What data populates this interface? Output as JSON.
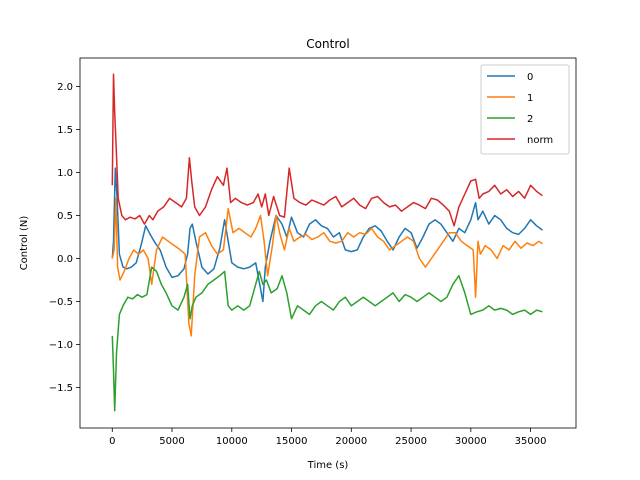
{
  "chart_data": {
    "type": "line",
    "title": "Control",
    "xlabel": "Time (s)",
    "ylabel": "Control (N)",
    "xlim": [
      -2700,
      38800
    ],
    "ylim": [
      -1.97,
      2.33
    ],
    "xticks": [
      0,
      5000,
      10000,
      15000,
      20000,
      25000,
      30000,
      35000
    ],
    "xtick_labels": [
      "0",
      "5000",
      "10000",
      "15000",
      "20000",
      "25000",
      "30000",
      "35000"
    ],
    "yticks": [
      -1.5,
      -1.0,
      -0.5,
      0.0,
      0.5,
      1.0,
      1.5,
      2.0
    ],
    "ytick_labels": [
      "−1.5",
      "−1.0",
      "−0.5",
      "0.0",
      "0.5",
      "1.0",
      "1.5",
      "2.0"
    ],
    "grid": false,
    "legend_position": "top-right",
    "series": [
      {
        "name": "0",
        "color": "#1f77b4",
        "x": [
          0,
          100,
          250,
          400,
          600,
          900,
          1200,
          1600,
          2000,
          2400,
          2800,
          3100,
          3500,
          4000,
          4500,
          5000,
          5500,
          6000,
          6300,
          6500,
          6700,
          7000,
          7500,
          8000,
          8500,
          9000,
          9400,
          9700,
          10000,
          10500,
          11000,
          11500,
          12000,
          12400,
          12600,
          12800,
          13200,
          13700,
          14200,
          14600,
          15000,
          15500,
          16000,
          16500,
          17000,
          17500,
          18000,
          18500,
          19000,
          19500,
          20000,
          20500,
          21000,
          21500,
          22000,
          22500,
          23000,
          23500,
          24000,
          24500,
          25000,
          25500,
          26000,
          26500,
          27000,
          27500,
          28000,
          28500,
          29000,
          29500,
          30000,
          30400,
          30600,
          30800,
          31000,
          31500,
          32000,
          32500,
          33000,
          33500,
          34000,
          34500,
          35000,
          35500,
          36000
        ],
        "values": [
          0.0,
          0.2,
          1.05,
          0.7,
          0.05,
          -0.1,
          -0.12,
          -0.1,
          -0.05,
          0.15,
          0.38,
          0.3,
          0.2,
          0.1,
          -0.1,
          -0.22,
          -0.2,
          -0.12,
          0.05,
          0.35,
          0.4,
          0.2,
          -0.1,
          -0.18,
          -0.12,
          0.12,
          0.45,
          0.2,
          -0.05,
          -0.1,
          -0.12,
          -0.1,
          -0.05,
          -0.35,
          -0.5,
          -0.1,
          0.2,
          0.5,
          0.4,
          0.25,
          0.48,
          0.3,
          0.25,
          0.4,
          0.45,
          0.38,
          0.35,
          0.25,
          0.3,
          0.1,
          0.08,
          0.1,
          0.25,
          0.35,
          0.38,
          0.32,
          0.2,
          0.1,
          0.25,
          0.35,
          0.3,
          0.12,
          0.25,
          0.4,
          0.45,
          0.4,
          0.3,
          0.2,
          0.35,
          0.3,
          0.45,
          0.65,
          0.45,
          0.5,
          0.55,
          0.4,
          0.5,
          0.45,
          0.35,
          0.3,
          0.28,
          0.35,
          0.45,
          0.38,
          0.33
        ]
      },
      {
        "name": "1",
        "color": "#ff7f0e",
        "x": [
          0,
          150,
          300,
          450,
          650,
          1000,
          1400,
          1800,
          2200,
          2600,
          3000,
          3300,
          3700,
          4200,
          4700,
          5200,
          5700,
          6100,
          6400,
          6600,
          6900,
          7300,
          7800,
          8300,
          8800,
          9300,
          9700,
          10100,
          10600,
          11100,
          11600,
          12000,
          12400,
          12700,
          13000,
          13400,
          13700,
          14000,
          14400,
          14800,
          15200,
          15700,
          16200,
          16700,
          17200,
          17700,
          18200,
          18700,
          19200,
          19700,
          20200,
          20700,
          21200,
          21700,
          22200,
          22700,
          23200,
          23700,
          24200,
          24700,
          25200,
          25700,
          26200,
          26700,
          27200,
          27700,
          28200,
          28700,
          29200,
          29700,
          30200,
          30400,
          30600,
          30800,
          31200,
          31700,
          32200,
          32700,
          33200,
          33700,
          34200,
          34700,
          35200,
          35700,
          36000
        ],
        "values": [
          0.0,
          0.1,
          0.7,
          -0.1,
          -0.25,
          -0.15,
          0.0,
          0.1,
          0.05,
          0.1,
          0.0,
          -0.3,
          0.1,
          0.25,
          0.2,
          0.15,
          0.1,
          0.05,
          -0.75,
          -0.9,
          -0.2,
          0.25,
          0.3,
          0.15,
          0.05,
          0.1,
          0.58,
          0.3,
          0.35,
          0.3,
          0.25,
          0.35,
          0.5,
          0.2,
          -0.2,
          0.15,
          0.5,
          0.3,
          0.1,
          0.35,
          0.2,
          0.25,
          0.28,
          0.22,
          0.25,
          0.3,
          0.2,
          0.18,
          0.2,
          0.3,
          0.25,
          0.3,
          0.28,
          0.35,
          0.25,
          0.2,
          0.1,
          0.15,
          0.2,
          0.25,
          0.2,
          0.0,
          -0.1,
          0.0,
          0.1,
          0.2,
          0.3,
          0.3,
          0.2,
          0.15,
          0.1,
          -0.45,
          0.2,
          0.05,
          0.15,
          0.1,
          0.0,
          0.15,
          0.1,
          0.2,
          0.12,
          0.18,
          0.15,
          0.2,
          0.17
        ]
      },
      {
        "name": "2",
        "color": "#2ca02c",
        "x": [
          0,
          100,
          200,
          350,
          600,
          900,
          1300,
          1700,
          2100,
          2500,
          2900,
          3300,
          3700,
          4100,
          4500,
          5000,
          5500,
          6000,
          6300,
          6500,
          6700,
          7000,
          7500,
          8000,
          8500,
          9000,
          9400,
          9700,
          10000,
          10500,
          11000,
          11500,
          12000,
          12300,
          12600,
          12900,
          13300,
          13800,
          14200,
          14600,
          15000,
          15500,
          16000,
          16500,
          17000,
          17500,
          18000,
          18500,
          19000,
          19500,
          20000,
          20500,
          21000,
          21500,
          22000,
          22500,
          23000,
          23500,
          24000,
          24500,
          25000,
          25500,
          26000,
          26500,
          27000,
          27500,
          28000,
          28500,
          29000,
          29500,
          30000,
          30500,
          31000,
          31500,
          32000,
          32500,
          33000,
          33500,
          34000,
          34500,
          35000,
          35500,
          36000
        ],
        "values": [
          -0.9,
          -1.3,
          -1.77,
          -1.1,
          -0.65,
          -0.55,
          -0.45,
          -0.47,
          -0.42,
          -0.45,
          -0.42,
          -0.1,
          -0.15,
          -0.3,
          -0.4,
          -0.55,
          -0.6,
          -0.45,
          -0.3,
          -0.7,
          -0.55,
          -0.45,
          -0.4,
          -0.3,
          -0.25,
          -0.2,
          -0.15,
          -0.55,
          -0.6,
          -0.55,
          -0.6,
          -0.55,
          -0.3,
          -0.15,
          -0.3,
          -0.25,
          -0.4,
          -0.35,
          -0.2,
          -0.4,
          -0.7,
          -0.55,
          -0.6,
          -0.65,
          -0.55,
          -0.5,
          -0.55,
          -0.6,
          -0.5,
          -0.45,
          -0.55,
          -0.5,
          -0.45,
          -0.5,
          -0.55,
          -0.5,
          -0.45,
          -0.4,
          -0.5,
          -0.42,
          -0.45,
          -0.5,
          -0.45,
          -0.4,
          -0.45,
          -0.5,
          -0.45,
          -0.3,
          -0.2,
          -0.4,
          -0.65,
          -0.62,
          -0.6,
          -0.55,
          -0.6,
          -0.58,
          -0.6,
          -0.65,
          -0.62,
          -0.6,
          -0.65,
          -0.6,
          -0.62
        ]
      },
      {
        "name": "norm",
        "color": "#d62728",
        "x": [
          0,
          100,
          200,
          350,
          500,
          800,
          1100,
          1500,
          1900,
          2300,
          2700,
          3100,
          3400,
          3800,
          4300,
          4800,
          5300,
          5800,
          6200,
          6450,
          6650,
          6900,
          7300,
          7800,
          8300,
          8800,
          9300,
          9600,
          9900,
          10300,
          10800,
          11300,
          11800,
          12200,
          12500,
          12800,
          13100,
          13500,
          14000,
          14400,
          14800,
          15200,
          15700,
          16200,
          16700,
          17200,
          17700,
          18200,
          18700,
          19200,
          19700,
          20200,
          20700,
          21200,
          21700,
          22200,
          22700,
          23200,
          23700,
          24200,
          24700,
          25200,
          25700,
          26200,
          26700,
          27200,
          27700,
          28200,
          28600,
          29000,
          29500,
          30000,
          30400,
          30700,
          31000,
          31500,
          32000,
          32500,
          33000,
          33500,
          34000,
          34500,
          35000,
          35500,
          36000
        ],
        "values": [
          0.85,
          2.14,
          1.7,
          1.2,
          0.7,
          0.5,
          0.45,
          0.48,
          0.46,
          0.5,
          0.4,
          0.5,
          0.45,
          0.55,
          0.6,
          0.7,
          0.65,
          0.6,
          0.7,
          1.17,
          0.9,
          0.6,
          0.5,
          0.6,
          0.8,
          0.95,
          0.85,
          1.05,
          0.65,
          0.7,
          0.65,
          0.62,
          0.65,
          0.75,
          0.6,
          0.75,
          0.5,
          0.72,
          0.5,
          0.48,
          1.05,
          0.7,
          0.65,
          0.62,
          0.68,
          0.65,
          0.62,
          0.68,
          0.72,
          0.6,
          0.65,
          0.7,
          0.62,
          0.58,
          0.7,
          0.72,
          0.65,
          0.6,
          0.62,
          0.55,
          0.6,
          0.65,
          0.62,
          0.58,
          0.7,
          0.68,
          0.62,
          0.55,
          0.38,
          0.6,
          0.75,
          0.9,
          0.92,
          0.7,
          0.75,
          0.78,
          0.85,
          0.75,
          0.8,
          0.72,
          0.78,
          0.7,
          0.85,
          0.78,
          0.73
        ]
      }
    ]
  }
}
